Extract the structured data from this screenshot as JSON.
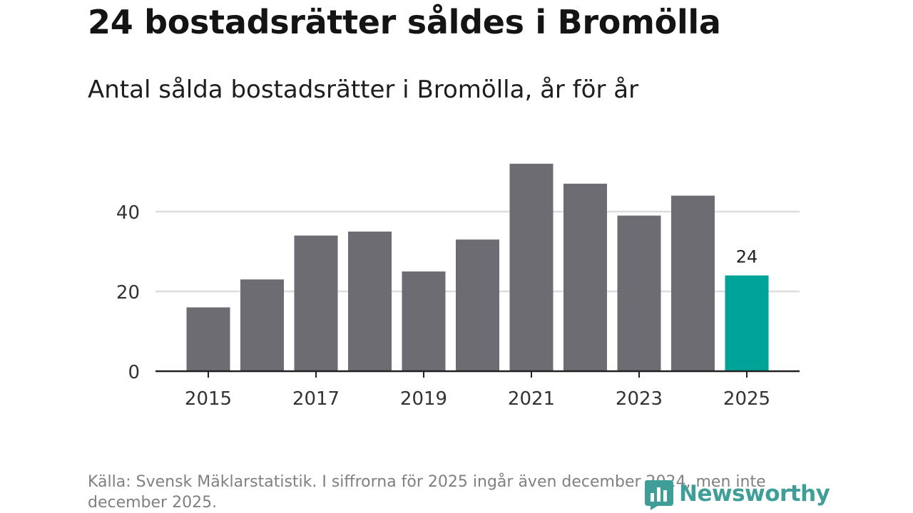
{
  "title": "24 bostadsrätter såldes i Bromölla",
  "subtitle": "Antal sålda bostadsrätter i Bromölla, år för år",
  "source": "Källa: Svensk Mäklarstatistik. I siffrorna för 2025 ingår även december 2024, men inte december 2025.",
  "logo_text": "Newsworthy",
  "colors": {
    "bar": "#6d6c72",
    "highlight": "#00a398",
    "grid": "#dddddd",
    "axis": "#222222",
    "logo": "#3f9f98"
  },
  "chart_data": {
    "type": "bar",
    "title": "24 bostadsrätter såldes i Bromölla",
    "subtitle": "Antal sålda bostadsrätter i Bromölla, år för år",
    "xlabel": "",
    "ylabel": "",
    "categories": [
      "2015",
      "2016",
      "2017",
      "2018",
      "2019",
      "2020",
      "2021",
      "2022",
      "2023",
      "2024",
      "2025"
    ],
    "values": [
      16,
      23,
      34,
      35,
      25,
      33,
      52,
      47,
      39,
      44,
      24
    ],
    "highlight_index": 10,
    "highlight_label": "24",
    "x_tick_labels": [
      "2015",
      "2017",
      "2019",
      "2021",
      "2023",
      "2025"
    ],
    "y_ticks": [
      0,
      20,
      40
    ],
    "y_tick_labels": [
      "0",
      "20",
      "40"
    ],
    "ylim": [
      0,
      56
    ],
    "grid": true
  }
}
